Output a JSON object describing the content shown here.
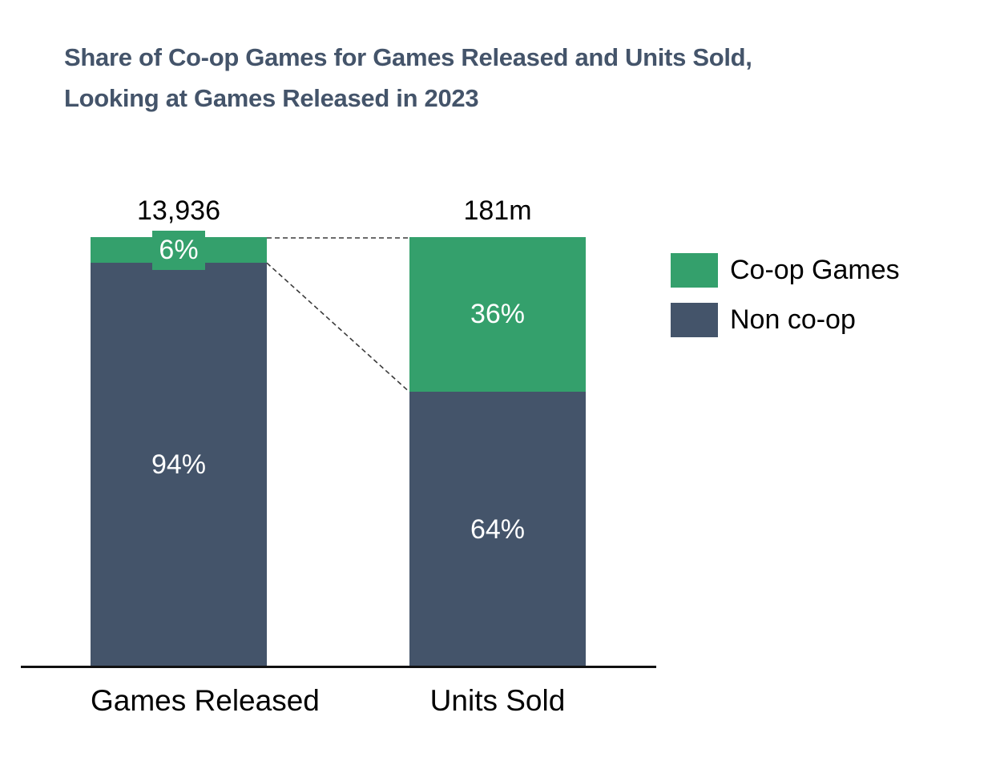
{
  "title": {
    "line1": "Share of Co-op Games for Games Released and Units Sold,",
    "line2": "Looking at Games Released in 2023"
  },
  "chart_data": {
    "type": "bar",
    "subtype": "100pct-stacked-columns",
    "categories": [
      "Games Released",
      "Units Sold"
    ],
    "category_totals": [
      "13,936",
      "181m"
    ],
    "series": [
      {
        "name": "Co-op Games",
        "color": "#34a06c",
        "values": [
          6,
          36
        ],
        "labels": [
          "6%",
          "36%"
        ]
      },
      {
        "name": "Non co-op",
        "color": "#44546a",
        "values": [
          94,
          64
        ],
        "labels": [
          "94%",
          "64%"
        ]
      }
    ],
    "ylim": [
      0,
      100
    ],
    "grid": false,
    "legend_position": "right",
    "annotations": "Dashed connector lines link the top edges of both columns and the co-op/non co-op boundary (6% to 36%) between the two columns"
  },
  "colors": {
    "title": "#44546a",
    "coop_green": "#34a06c",
    "noncoop_slate": "#44546a",
    "on_bar_text": "#ffffff",
    "axis": "#111111",
    "connector": "#3a3a3a",
    "background": "#ffffff"
  }
}
